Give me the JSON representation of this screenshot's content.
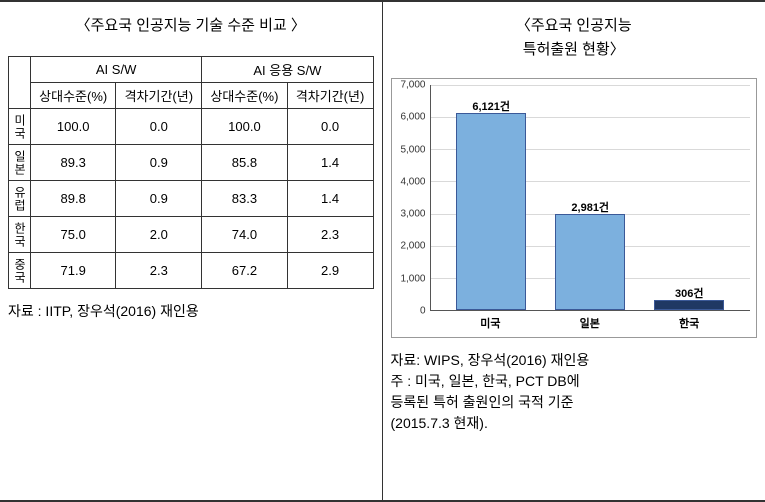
{
  "left": {
    "title": "〈주요국 인공지능 기술 수준 비교 〉",
    "headers": {
      "ai_sw": "AI S/W",
      "ai_app_sw": "AI 응용 S/W",
      "rel_level": "상대수준(%)",
      "gap_period": "격차기간(년)"
    },
    "rows": [
      {
        "country": "미국",
        "ai_sw_level": "100.0",
        "ai_sw_gap": "0.0",
        "ai_app_level": "100.0",
        "ai_app_gap": "0.0"
      },
      {
        "country": "일본",
        "ai_sw_level": "89.3",
        "ai_sw_gap": "0.9",
        "ai_app_level": "85.8",
        "ai_app_gap": "1.4"
      },
      {
        "country": "유럽",
        "ai_sw_level": "89.8",
        "ai_sw_gap": "0.9",
        "ai_app_level": "83.3",
        "ai_app_gap": "1.4"
      },
      {
        "country": "한국",
        "ai_sw_level": "75.0",
        "ai_sw_gap": "2.0",
        "ai_app_level": "74.0",
        "ai_app_gap": "2.3"
      },
      {
        "country": "중국",
        "ai_sw_level": "71.9",
        "ai_sw_gap": "2.3",
        "ai_app_level": "67.2",
        "ai_app_gap": "2.9"
      }
    ],
    "source": "자료 : IITP, 장우석(2016) 재인용"
  },
  "right": {
    "title_line1": "〈주요국 인공지능",
    "title_line2": "특허출원 현황〉",
    "chart": {
      "type": "bar",
      "ymax": 7000,
      "ytick_step": 1000,
      "grid_color": "#d9d9d9",
      "categories": [
        "미국",
        "일본",
        "한국"
      ],
      "values": [
        6121,
        2981,
        306
      ],
      "value_labels": [
        "6,121건",
        "2,981건",
        "306건"
      ],
      "bar_colors": [
        "#7cb0de",
        "#7cb0de",
        "#1f3864"
      ],
      "border_color": "#3b5998",
      "bar_positions_pct": [
        8,
        39,
        70
      ],
      "bar_width_pct": 22
    },
    "source_line1": "자료: WIPS, 장우석(2016) 재인용",
    "source_line2": "주 : 미국, 일본, 한국, PCT DB에",
    "source_line3": "등록된 특허 출원인의 국적 기준",
    "source_line4": "(2015.7.3 현재)."
  }
}
